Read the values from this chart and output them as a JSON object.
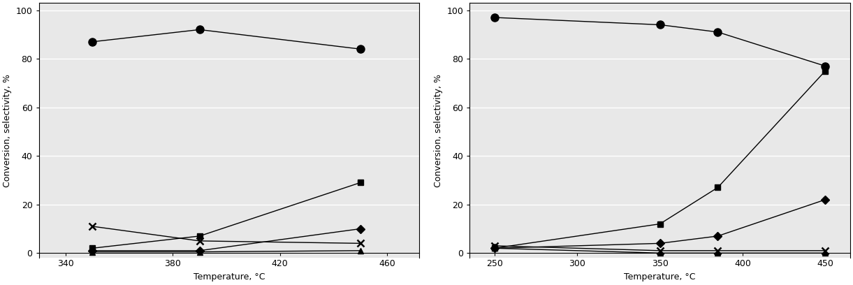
{
  "left": {
    "x": [
      350,
      390,
      450
    ],
    "circle": [
      87,
      92,
      84
    ],
    "square": [
      2,
      7,
      29
    ],
    "triangle": [
      0.5,
      0.5,
      1
    ],
    "diamond": [
      1,
      1,
      10
    ],
    "cross": [
      11,
      5,
      4
    ],
    "xlabel": "Temperature, °C",
    "ylabel": "Conversion, selectivity, %",
    "xlim": [
      330,
      472
    ],
    "xticks": [
      340,
      380,
      420,
      460
    ],
    "ylim": [
      -2,
      103
    ],
    "yticks": [
      0,
      20,
      40,
      60,
      80,
      100
    ]
  },
  "right": {
    "x": [
      250,
      350,
      385,
      450
    ],
    "circle": [
      97,
      94,
      91,
      77
    ],
    "square": [
      2,
      12,
      27,
      75
    ],
    "triangle": [
      2,
      0,
      0,
      0
    ],
    "diamond": [
      2,
      4,
      7,
      22
    ],
    "cross": [
      3,
      1,
      1,
      1
    ],
    "xlabel": "Temperature, °C",
    "ylabel": "Conversion, selectivity, %",
    "xlim": [
      235,
      465
    ],
    "xticks": [
      250,
      300,
      350,
      400,
      450
    ],
    "ylim": [
      -2,
      103
    ],
    "yticks": [
      0,
      20,
      40,
      60,
      80,
      100
    ]
  },
  "line_color": "#000000",
  "marker_circle": "o",
  "marker_square": "s",
  "marker_triangle": "^",
  "marker_diamond": "D",
  "marker_cross": "x",
  "markersize": 6,
  "linewidth": 1.0,
  "background_color": "#ffffff",
  "plot_bg_color": "#e8e8e8",
  "grid_color": "#ffffff"
}
